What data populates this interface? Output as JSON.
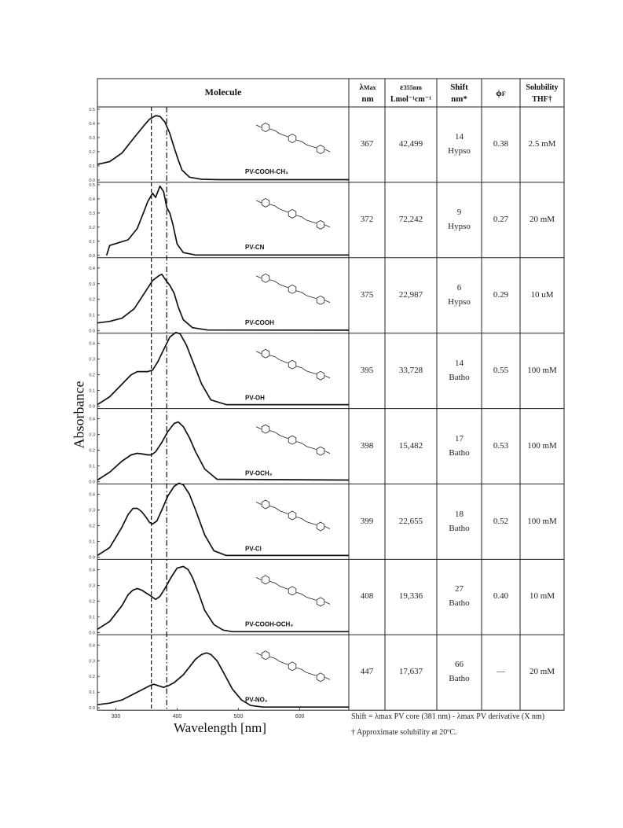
{
  "table": {
    "headers": {
      "molecule": "Molecule",
      "lambda_top": "λ",
      "lambda_sub": "Max",
      "lambda_unit": "nm",
      "eps_top": "ε",
      "eps_sub": "355nm",
      "eps_unit": "Lmol⁻¹cm⁻¹",
      "shift": "Shift",
      "shift_unit": "nm*",
      "phi": "ϕ",
      "phi_sub": "F",
      "solubility": "Solubility",
      "solubility_unit": "THF†"
    },
    "rows": [
      {
        "name": "PV-COOH-CH₃",
        "lambda": "367",
        "epsilon": "42,499",
        "shift": "14",
        "shift_type": "Hypso",
        "phi": "0.38",
        "solubility": "2.5 mM"
      },
      {
        "name": "PV-CN",
        "lambda": "372",
        "epsilon": "72,242",
        "shift": "9",
        "shift_type": "Hypso",
        "phi": "0.27",
        "solubility": "20 mM"
      },
      {
        "name": "PV-COOH",
        "lambda": "375",
        "epsilon": "22,987",
        "shift": "6",
        "shift_type": "Hypso",
        "phi": "0.29",
        "solubility": "10 uM"
      },
      {
        "name": "PV-OH",
        "lambda": "395",
        "epsilon": "33,728",
        "shift": "14",
        "shift_type": "Batho",
        "phi": "0.55",
        "solubility": "100 mM"
      },
      {
        "name": "PV-OCH₃",
        "lambda": "398",
        "epsilon": "15,482",
        "shift": "17",
        "shift_type": "Batho",
        "phi": "0.53",
        "solubility": "100 mM"
      },
      {
        "name": "PV-Cl",
        "lambda": "399",
        "epsilon": "22,655",
        "shift": "18",
        "shift_type": "Batho",
        "phi": "0.52",
        "solubility": "100 mM"
      },
      {
        "name": "PV-COOH-OCH₃",
        "lambda": "408",
        "epsilon": "19,336",
        "shift": "27",
        "shift_type": "Batho",
        "phi": "0.40",
        "solubility": "10 mM"
      },
      {
        "name": "PV-NO₂",
        "lambda": "447",
        "epsilon": "17,637",
        "shift": "66",
        "shift_type": "Batho",
        "phi": "—",
        "solubility": "20 mM"
      }
    ]
  },
  "footnotes": {
    "shift_note": "Shift = λmax PV core (381 nm) - λmax PV derivative (X nm)",
    "solubility_note": "† Approximate solubility at 20ºC."
  },
  "chart_data": {
    "type": "line",
    "xlabel": "Wavelength [nm]",
    "ylabel": "Absorbance",
    "xlim": [
      270,
      680
    ],
    "x_ticks": [
      300,
      400,
      500,
      600
    ],
    "y_tick_labels": [
      "0.0",
      "0.1",
      "0.2",
      "0.3",
      "0.4",
      "0.5"
    ],
    "reference_lines": [
      {
        "x": 358,
        "style": "dashed"
      },
      {
        "x": 383,
        "style": "dash-dot"
      }
    ],
    "panels": [
      {
        "name": "PV-COOH-CH₃",
        "ylim": [
          0,
          0.5
        ],
        "x": [
          270,
          290,
          310,
          330,
          345,
          355,
          365,
          372,
          380,
          388,
          395,
          402,
          408,
          420,
          440,
          470,
          680
        ],
        "y": [
          0.11,
          0.13,
          0.19,
          0.3,
          0.38,
          0.43,
          0.455,
          0.45,
          0.41,
          0.33,
          0.23,
          0.14,
          0.07,
          0.02,
          0.005,
          0.002,
          0.002
        ]
      },
      {
        "name": "PV-CN",
        "ylim": [
          0,
          0.5
        ],
        "x": [
          285,
          290,
          305,
          320,
          335,
          345,
          352,
          360,
          365,
          372,
          378,
          383,
          388,
          393,
          400,
          410,
          430,
          680
        ],
        "y": [
          0.0,
          0.07,
          0.09,
          0.11,
          0.19,
          0.3,
          0.38,
          0.44,
          0.41,
          0.49,
          0.45,
          0.34,
          0.3,
          0.22,
          0.08,
          0.02,
          0.003,
          0.003
        ]
      },
      {
        "name": "PV-COOH",
        "ylim": [
          0,
          0.45
        ],
        "x": [
          270,
          290,
          310,
          330,
          345,
          360,
          370,
          375,
          382,
          388,
          395,
          402,
          410,
          425,
          450,
          680
        ],
        "y": [
          0.05,
          0.06,
          0.08,
          0.14,
          0.23,
          0.32,
          0.35,
          0.36,
          0.32,
          0.29,
          0.24,
          0.15,
          0.07,
          0.02,
          0.005,
          0.004
        ]
      },
      {
        "name": "PV-OH",
        "ylim": [
          0,
          0.45
        ],
        "x": [
          270,
          290,
          310,
          325,
          335,
          345,
          352,
          360,
          368,
          378,
          388,
          398,
          405,
          415,
          425,
          440,
          455,
          480,
          680
        ],
        "y": [
          0.01,
          0.06,
          0.14,
          0.2,
          0.22,
          0.22,
          0.22,
          0.23,
          0.28,
          0.36,
          0.44,
          0.47,
          0.46,
          0.39,
          0.29,
          0.14,
          0.04,
          0.01,
          0.01
        ]
      },
      {
        "name": "PV-OCH₃",
        "ylim": [
          0,
          0.45
        ],
        "x": [
          270,
          290,
          310,
          325,
          335,
          345,
          352,
          358,
          365,
          375,
          385,
          395,
          402,
          410,
          420,
          430,
          445,
          465,
          680
        ],
        "y": [
          0.01,
          0.06,
          0.13,
          0.17,
          0.18,
          0.175,
          0.17,
          0.17,
          0.19,
          0.25,
          0.32,
          0.37,
          0.38,
          0.35,
          0.28,
          0.19,
          0.08,
          0.015,
          0.01
        ]
      },
      {
        "name": "PV-Cl",
        "ylim": [
          0,
          0.45
        ],
        "x": [
          270,
          290,
          310,
          320,
          328,
          335,
          342,
          350,
          355,
          360,
          367,
          375,
          385,
          395,
          403,
          410,
          420,
          430,
          445,
          460,
          480,
          680
        ],
        "y": [
          0.01,
          0.06,
          0.19,
          0.27,
          0.31,
          0.31,
          0.29,
          0.25,
          0.22,
          0.21,
          0.23,
          0.3,
          0.39,
          0.45,
          0.47,
          0.46,
          0.4,
          0.3,
          0.14,
          0.04,
          0.01,
          0.01
        ]
      },
      {
        "name": "PV-COOH-OCH₃",
        "ylim": [
          0,
          0.45
        ],
        "x": [
          270,
          290,
          310,
          320,
          328,
          335,
          342,
          350,
          358,
          365,
          372,
          380,
          390,
          400,
          410,
          418,
          425,
          435,
          445,
          460,
          475,
          490,
          680
        ],
        "y": [
          0.02,
          0.07,
          0.17,
          0.24,
          0.27,
          0.28,
          0.27,
          0.25,
          0.23,
          0.21,
          0.23,
          0.28,
          0.35,
          0.41,
          0.42,
          0.4,
          0.35,
          0.25,
          0.14,
          0.05,
          0.015,
          0.005,
          0.005
        ]
      },
      {
        "name": "PV-NO₂",
        "ylim": [
          0,
          0.45
        ],
        "x": [
          270,
          290,
          310,
          330,
          345,
          355,
          362,
          370,
          378,
          385,
          395,
          410,
          420,
          430,
          440,
          448,
          455,
          465,
          475,
          490,
          505,
          520,
          540,
          680
        ],
        "y": [
          0.02,
          0.03,
          0.05,
          0.09,
          0.12,
          0.14,
          0.15,
          0.14,
          0.13,
          0.14,
          0.16,
          0.21,
          0.26,
          0.31,
          0.34,
          0.35,
          0.34,
          0.3,
          0.23,
          0.12,
          0.05,
          0.015,
          0.005,
          0.005
        ]
      }
    ]
  }
}
